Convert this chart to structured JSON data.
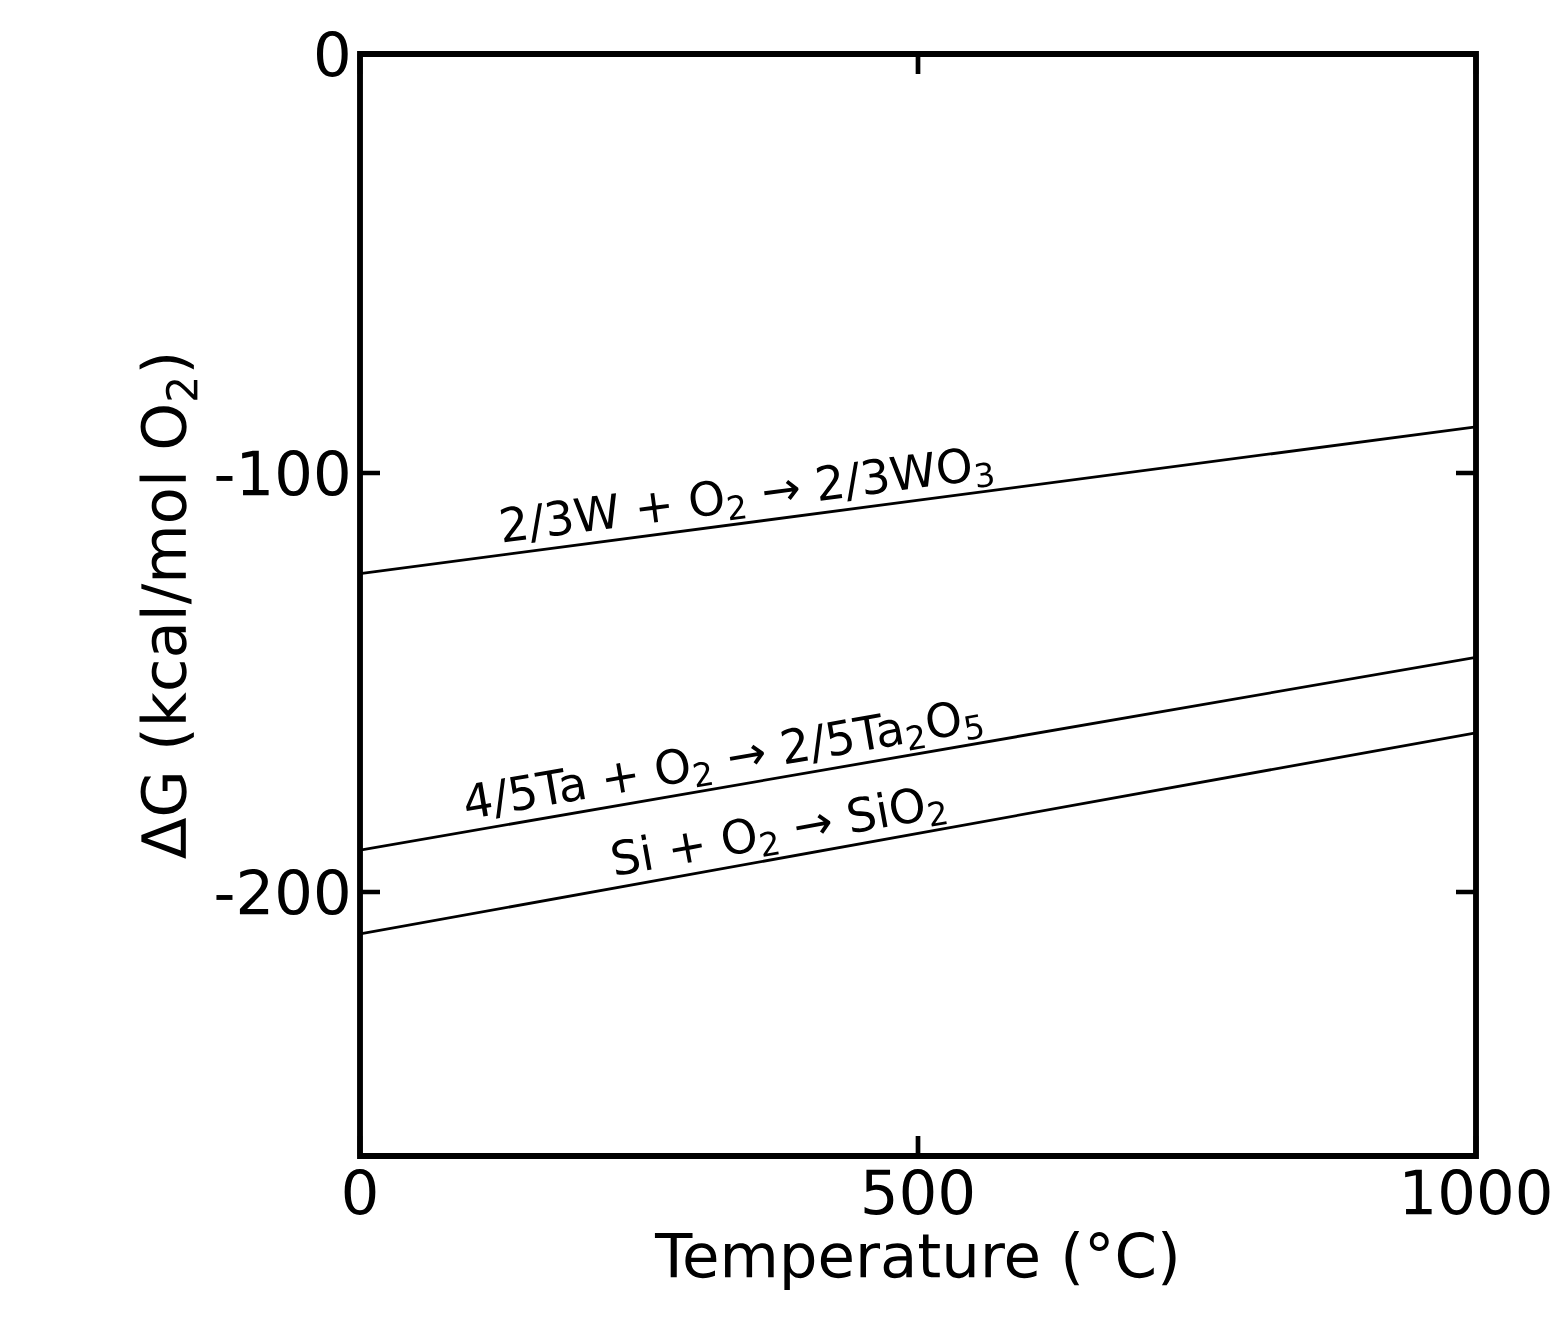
{
  "chart_data": {
    "type": "line",
    "xlabel": "Temperature (°C)",
    "ylabel": "ΔG (kcal/mol O$_{2}$)",
    "xlim": [
      0,
      1000
    ],
    "ylim": [
      -263,
      0
    ],
    "xticks": [
      0,
      500,
      1000
    ],
    "yticks": [
      0,
      -100,
      -200
    ],
    "x": [
      0,
      1000
    ],
    "series": [
      {
        "color": "#000000",
        "values": [
          -124,
          -89
        ]
      },
      {
        "color": "#000000",
        "values": [
          -190,
          -144
        ]
      },
      {
        "color": "#000000",
        "values": [
          -210,
          -162
        ]
      }
    ],
    "annotations": [
      {
        "text": "2/3W + O$_{2}$ → 2/3WO$_{3}$",
        "x": 350,
        "y": -112
      },
      {
        "text": "4/5Ta + O$_{2}$ → 2/5Ta$_{2}$O$_{5}$",
        "x": 330,
        "y": -175
      },
      {
        "text": "Si + O$_{2}$ → SiO$_{2}$",
        "x": 380,
        "y": -192
      }
    ],
    "grid": false,
    "marker": "none",
    "line_style": "solid"
  }
}
